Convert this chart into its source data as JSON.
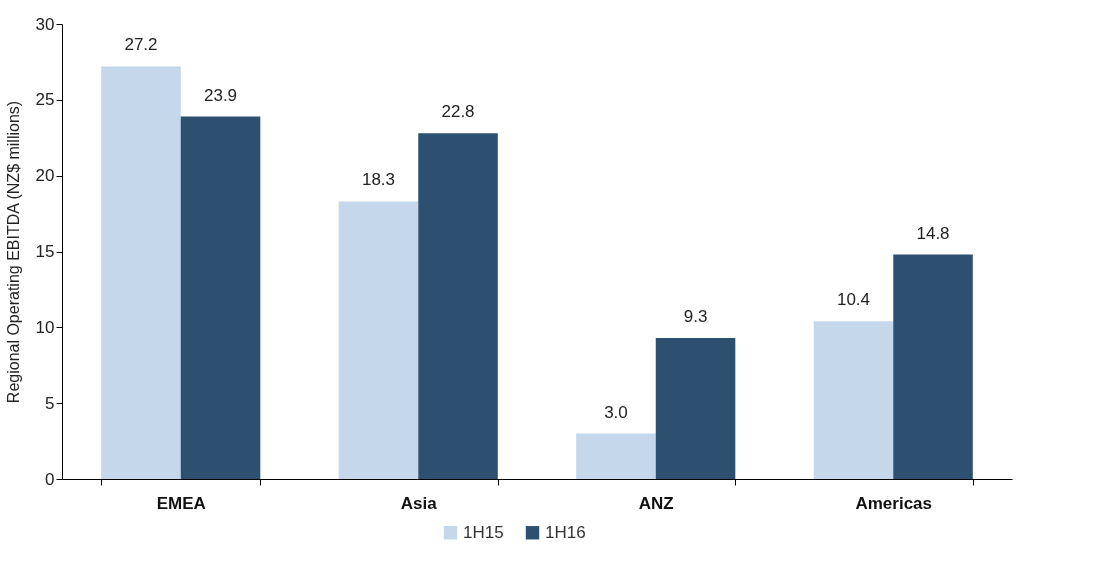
{
  "chart_data": {
    "type": "bar",
    "ylabel": "Regional Operating EBITDA (NZ$ millions)",
    "categories": [
      "EMEA",
      "Asia",
      "ANZ",
      "Americas"
    ],
    "series": [
      {
        "name": "1H15",
        "color": "#c5d7ea",
        "values": [
          27.2,
          18.3,
          3.0,
          10.4
        ],
        "value_labels": [
          "27.2",
          "18.3",
          "3.0",
          "10.4"
        ]
      },
      {
        "name": "1H16",
        "color": "#2e5070",
        "values": [
          23.9,
          22.8,
          9.3,
          14.8
        ],
        "value_labels": [
          "23.9",
          "22.8",
          "9.3",
          "14.8"
        ]
      }
    ],
    "ylim": [
      0,
      30
    ],
    "yticks": [
      0,
      5,
      10,
      15,
      20,
      25,
      30
    ],
    "grid": false,
    "legend": "bottom"
  }
}
